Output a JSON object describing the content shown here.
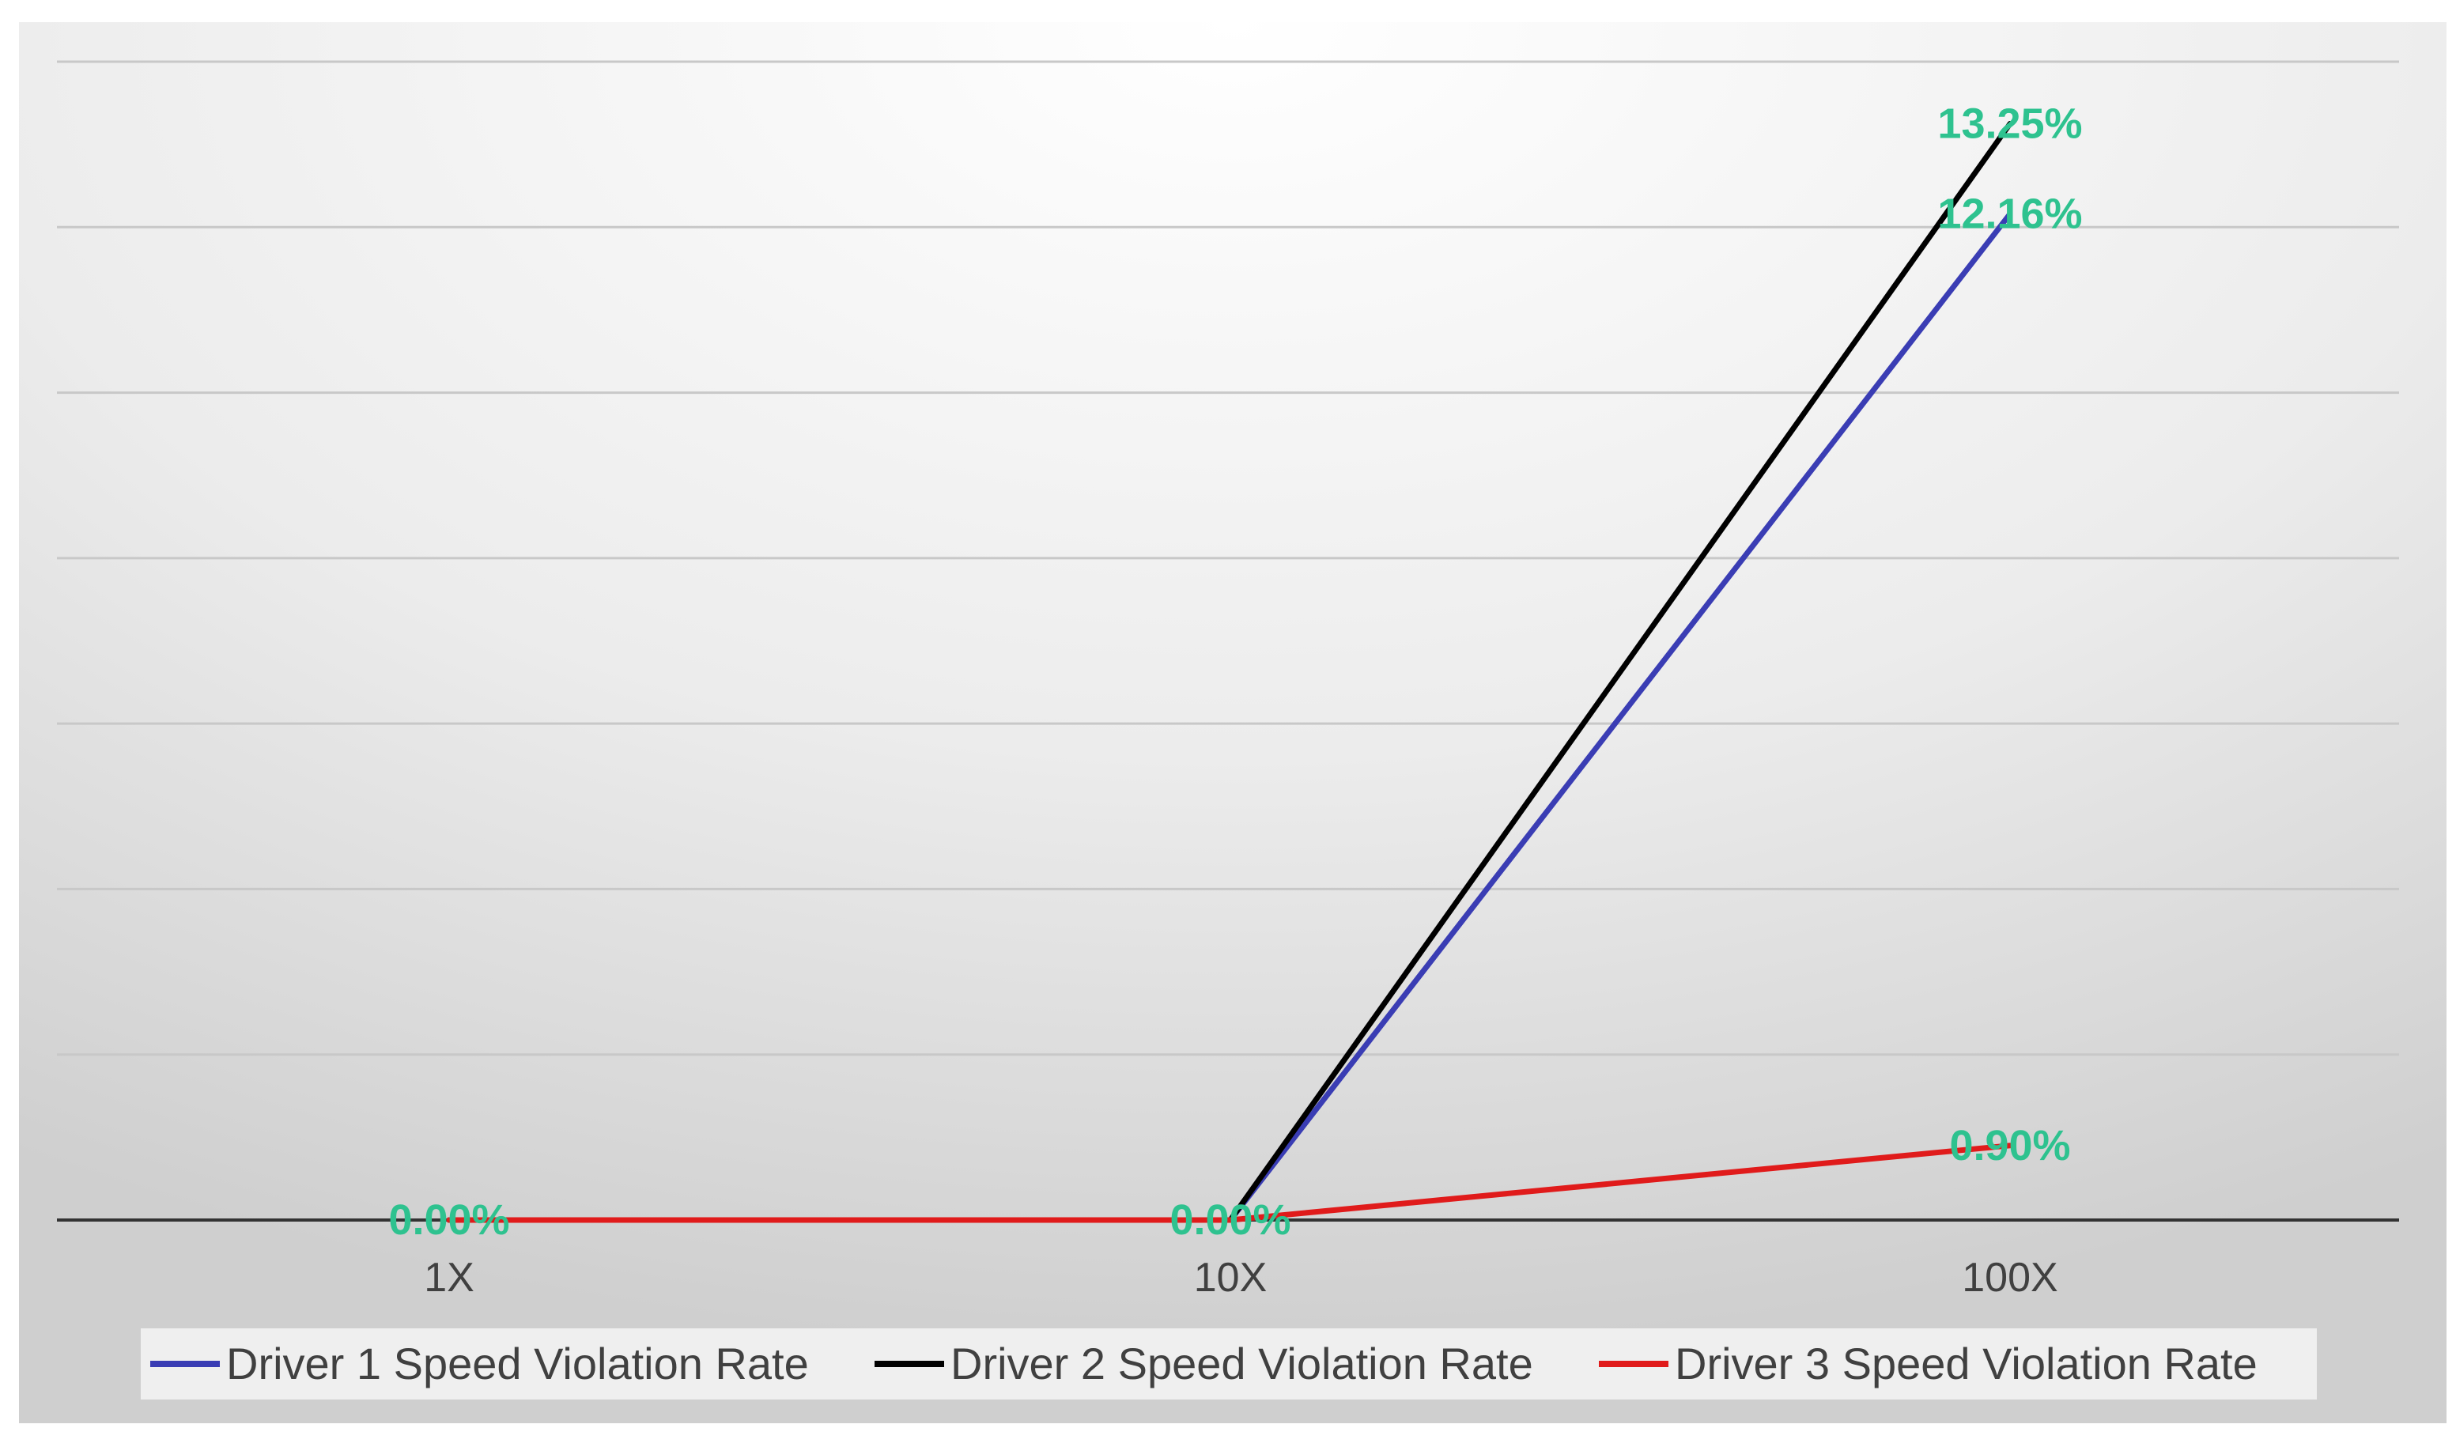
{
  "chart_data": {
    "type": "line",
    "title": "",
    "xlabel": "",
    "ylabel": "",
    "categories": [
      "1X",
      "10X",
      "100X"
    ],
    "ylim": [
      0,
      14
    ],
    "grid": true,
    "y_axis_labels_shown": false,
    "legend_position": "bottom",
    "data_label_color": "#2ec28f",
    "series": [
      {
        "name": "Driver 1 Speed Violation Rate",
        "values": [
          0.0,
          0.0,
          12.16
        ],
        "labels": [
          "",
          "",
          "12.16%"
        ],
        "color": "#3a3db4"
      },
      {
        "name": "Driver 2 Speed Violation Rate",
        "values": [
          0.0,
          0.0,
          13.25
        ],
        "labels": [
          "",
          "",
          "13.25%"
        ],
        "color": "#000000"
      },
      {
        "name": "Driver 3 Speed Violation Rate",
        "values": [
          0.0,
          0.0,
          0.9
        ],
        "labels": [
          "0.00%",
          "0.00%",
          "0.90%"
        ],
        "color": "#e01b1b"
      }
    ]
  }
}
